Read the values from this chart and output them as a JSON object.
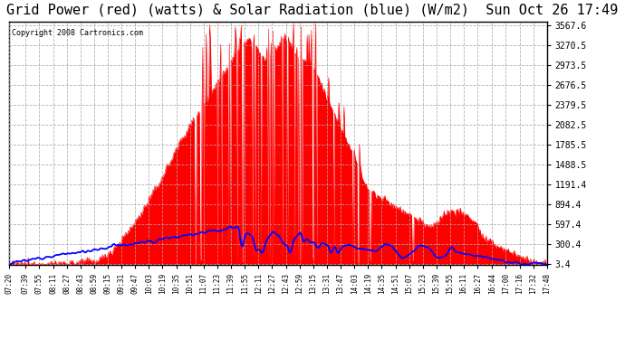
{
  "title": "Grid Power (red) (watts) & Solar Radiation (blue) (W/m2)  Sun Oct 26 17:49",
  "copyright": "Copyright 2008 Cartronics.com",
  "y_ticks": [
    3.4,
    300.4,
    597.4,
    894.4,
    1191.4,
    1488.5,
    1785.5,
    2082.5,
    2379.5,
    2676.5,
    2973.5,
    3270.5,
    3567.6
  ],
  "x_labels": [
    "07:20",
    "07:39",
    "07:55",
    "08:11",
    "08:27",
    "08:43",
    "08:59",
    "09:15",
    "09:31",
    "09:47",
    "10:03",
    "10:19",
    "10:35",
    "10:51",
    "11:07",
    "11:23",
    "11:39",
    "11:55",
    "12:11",
    "12:27",
    "12:43",
    "12:59",
    "13:15",
    "13:31",
    "13:47",
    "14:03",
    "14:19",
    "14:35",
    "14:51",
    "15:07",
    "15:23",
    "15:39",
    "15:55",
    "16:11",
    "16:27",
    "16:44",
    "17:00",
    "17:16",
    "17:32",
    "17:48"
  ],
  "background_color": "#ffffff",
  "plot_bg_color": "#ffffff",
  "grid_color": "#aaaaaa",
  "red_fill_color": "#ff0000",
  "blue_line_color": "#0000ff",
  "title_fontsize": 11,
  "ymax": 3567.6,
  "ymin": 3.4
}
